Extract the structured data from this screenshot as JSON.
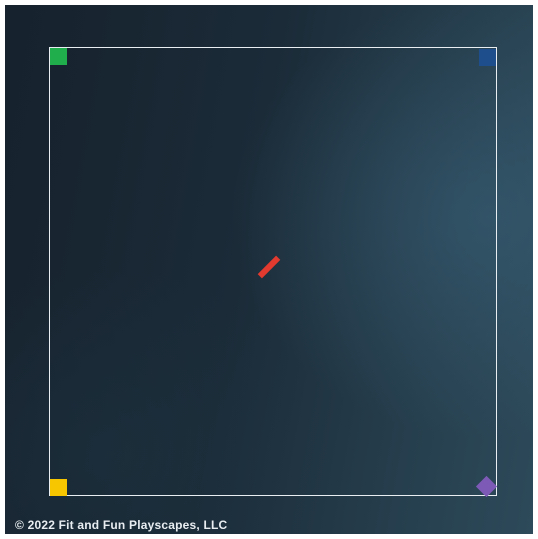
{
  "board": {
    "colors": {
      "background": "#1b2b38",
      "court_line": "#e9eef2"
    },
    "corner_markers": [
      {
        "name": "top-left",
        "shape": "square",
        "color": "#1fae4b"
      },
      {
        "name": "top-right",
        "shape": "square",
        "color": "#1e4f8c"
      },
      {
        "name": "bottom-left",
        "shape": "square",
        "color": "#f7c600"
      },
      {
        "name": "bottom-right",
        "shape": "diamond",
        "color": "#7d5ab5"
      }
    ],
    "center_mark": {
      "shape": "diagonal-dash",
      "color": "#e23a2e"
    }
  },
  "footer": {
    "copyright": "© 2022 Fit and Fun Playscapes, LLC"
  }
}
